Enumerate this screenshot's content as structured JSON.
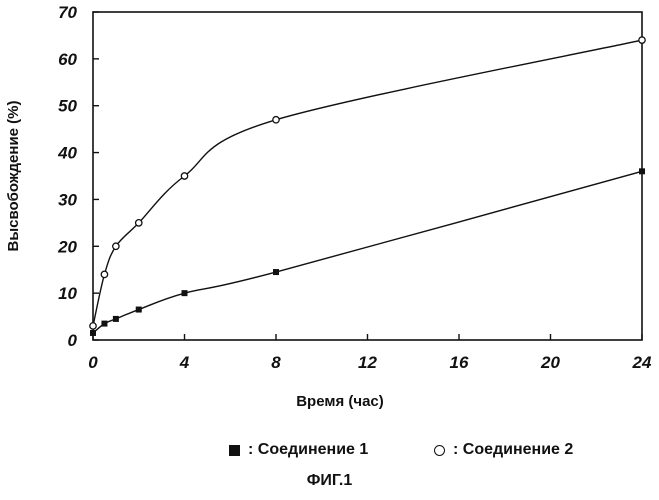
{
  "chart_data": {
    "type": "line",
    "xlabel": "Время (час)",
    "ylabel": "Высвобождение (%)",
    "xlim": [
      0,
      24
    ],
    "ylim": [
      0,
      70
    ],
    "x_ticks": [
      0,
      4,
      8,
      12,
      16,
      20,
      24
    ],
    "y_ticks": [
      0,
      10,
      20,
      30,
      40,
      50,
      60,
      70
    ],
    "grid": false,
    "legend_position": "bottom",
    "series": [
      {
        "name": "Соединение 1",
        "marker": "filled-square",
        "x": [
          0,
          0.5,
          1,
          2,
          4,
          8,
          24
        ],
        "y": [
          1.5,
          3.5,
          4.5,
          6.5,
          10,
          14.5,
          36
        ]
      },
      {
        "name": "Соединение 2",
        "marker": "open-circle",
        "x": [
          0,
          0.5,
          1,
          2,
          4,
          8,
          24
        ],
        "y": [
          3,
          14,
          20,
          25,
          35,
          47,
          64
        ]
      }
    ]
  },
  "legend": {
    "item1_label": ": Соединение 1",
    "item2_label": ": Соединение 2"
  },
  "caption": "ФИГ.1"
}
